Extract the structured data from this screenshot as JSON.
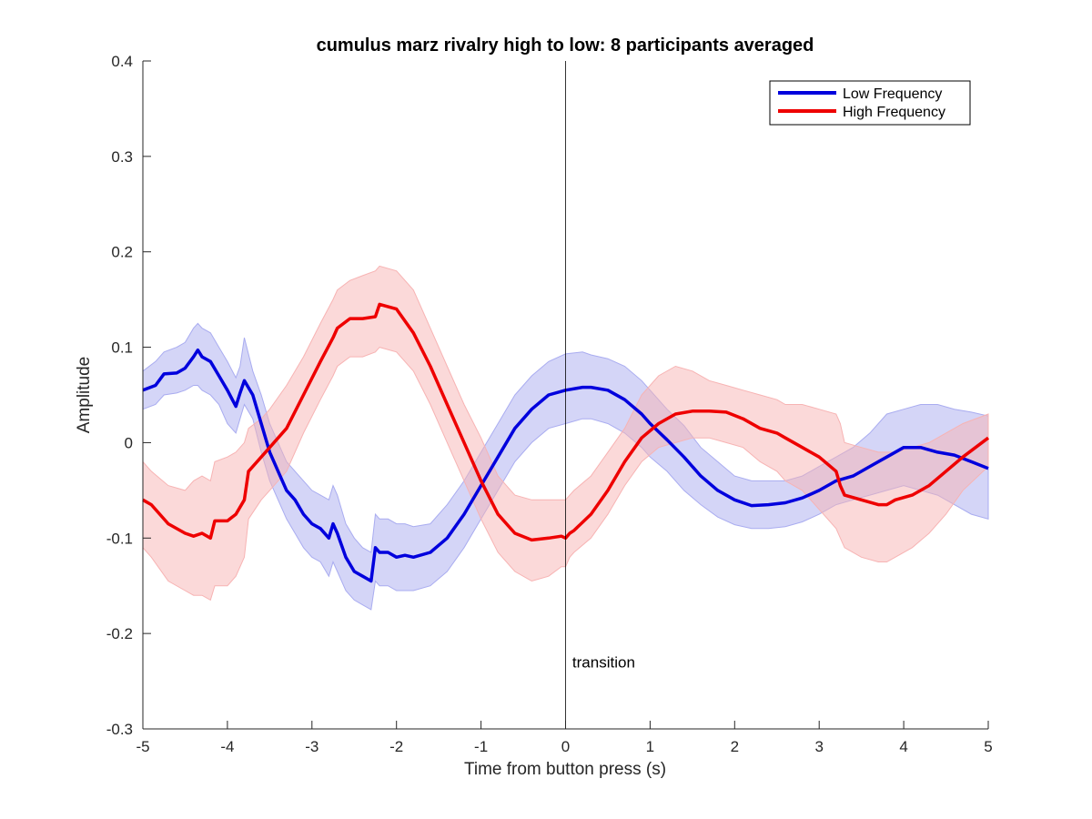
{
  "chart_data": {
    "type": "line",
    "title": "cumulus marz rivalry high to low: 8 participants averaged",
    "xlabel": "Time from button press (s)",
    "ylabel": "Amplitude",
    "xlim": [
      -5,
      5
    ],
    "ylim": [
      -0.3,
      0.4
    ],
    "xticks": [
      -5,
      -4,
      -3,
      -2,
      -1,
      0,
      1,
      2,
      3,
      4,
      5
    ],
    "xtick_labels": [
      "-5",
      "-4",
      "-3",
      "-2",
      "-1",
      "0",
      "1",
      "2",
      "3",
      "4",
      "5"
    ],
    "yticks": [
      -0.3,
      -0.2,
      -0.1,
      0,
      0.1,
      0.2,
      0.3,
      0.4
    ],
    "ytick_labels": [
      "-0.3",
      "-0.2",
      "-0.1",
      "0",
      "0.1",
      "0.2",
      "0.3",
      "0.4"
    ],
    "grid": false,
    "legend_position": "top-right",
    "vline": {
      "x": 0,
      "color": "#000000"
    },
    "annotation": {
      "text": "transition",
      "x": 0.08,
      "y": -0.23
    },
    "series": [
      {
        "name": "Low Frequency",
        "color": "#0000dd",
        "band_color": "#a9acf0",
        "x": [
          -5,
          -4.85,
          -4.75,
          -4.6,
          -4.5,
          -4.4,
          -4.35,
          -4.3,
          -4.2,
          -4.1,
          -4.0,
          -3.9,
          -3.85,
          -3.8,
          -3.7,
          -3.6,
          -3.5,
          -3.4,
          -3.3,
          -3.2,
          -3.1,
          -3.0,
          -2.9,
          -2.8,
          -2.75,
          -2.7,
          -2.6,
          -2.5,
          -2.4,
          -2.3,
          -2.25,
          -2.2,
          -2.1,
          -2.0,
          -1.9,
          -1.8,
          -1.6,
          -1.4,
          -1.2,
          -1.0,
          -0.8,
          -0.6,
          -0.4,
          -0.2,
          0.0,
          0.2,
          0.3,
          0.5,
          0.7,
          0.9,
          1.0,
          1.2,
          1.4,
          1.6,
          1.8,
          2.0,
          2.2,
          2.4,
          2.6,
          2.8,
          3.0,
          3.2,
          3.4,
          3.6,
          3.8,
          4.0,
          4.2,
          4.4,
          4.6,
          4.8,
          5.0
        ],
        "y": [
          0.055,
          0.06,
          0.072,
          0.073,
          0.078,
          0.09,
          0.097,
          0.09,
          0.085,
          0.07,
          0.055,
          0.038,
          0.052,
          0.065,
          0.05,
          0.02,
          -0.01,
          -0.03,
          -0.05,
          -0.06,
          -0.075,
          -0.085,
          -0.09,
          -0.1,
          -0.085,
          -0.095,
          -0.12,
          -0.135,
          -0.14,
          -0.145,
          -0.11,
          -0.115,
          -0.115,
          -0.12,
          -0.118,
          -0.12,
          -0.115,
          -0.1,
          -0.075,
          -0.045,
          -0.015,
          0.015,
          0.035,
          0.05,
          0.055,
          0.058,
          0.058,
          0.055,
          0.045,
          0.03,
          0.02,
          0.003,
          -0.015,
          -0.035,
          -0.05,
          -0.06,
          -0.066,
          -0.065,
          -0.063,
          -0.058,
          -0.05,
          -0.04,
          -0.035,
          -0.025,
          -0.015,
          -0.005,
          -0.005,
          -0.01,
          -0.013,
          -0.02,
          -0.027
        ],
        "lower": [
          0.035,
          0.04,
          0.05,
          0.052,
          0.055,
          0.06,
          0.06,
          0.055,
          0.05,
          0.04,
          0.02,
          0.01,
          0.025,
          0.04,
          0.025,
          -0.01,
          -0.04,
          -0.06,
          -0.08,
          -0.095,
          -0.11,
          -0.12,
          -0.125,
          -0.14,
          -0.125,
          -0.135,
          -0.155,
          -0.165,
          -0.17,
          -0.175,
          -0.145,
          -0.15,
          -0.15,
          -0.155,
          -0.155,
          -0.155,
          -0.15,
          -0.135,
          -0.11,
          -0.08,
          -0.05,
          -0.02,
          0.0,
          0.015,
          0.02,
          0.025,
          0.025,
          0.02,
          0.01,
          -0.005,
          -0.015,
          -0.03,
          -0.05,
          -0.065,
          -0.078,
          -0.086,
          -0.09,
          -0.09,
          -0.088,
          -0.083,
          -0.075,
          -0.065,
          -0.06,
          -0.055,
          -0.05,
          -0.045,
          -0.05,
          -0.055,
          -0.065,
          -0.075,
          -0.08
        ],
        "upper": [
          0.075,
          0.085,
          0.095,
          0.1,
          0.105,
          0.12,
          0.125,
          0.12,
          0.115,
          0.1,
          0.085,
          0.068,
          0.08,
          0.11,
          0.075,
          0.05,
          0.02,
          0.0,
          -0.02,
          -0.03,
          -0.04,
          -0.05,
          -0.055,
          -0.06,
          -0.045,
          -0.055,
          -0.085,
          -0.1,
          -0.11,
          -0.115,
          -0.075,
          -0.08,
          -0.08,
          -0.085,
          -0.085,
          -0.088,
          -0.085,
          -0.065,
          -0.04,
          -0.01,
          0.02,
          0.05,
          0.07,
          0.085,
          0.093,
          0.095,
          0.092,
          0.088,
          0.08,
          0.065,
          0.055,
          0.035,
          0.018,
          -0.005,
          -0.02,
          -0.035,
          -0.04,
          -0.04,
          -0.04,
          -0.035,
          -0.025,
          -0.015,
          -0.005,
          0.01,
          0.03,
          0.035,
          0.04,
          0.04,
          0.035,
          0.032,
          0.028
        ]
      },
      {
        "name": "High Frequency",
        "color": "#ee0000",
        "band_color": "#f7b3b3",
        "x": [
          -5,
          -4.9,
          -4.7,
          -4.5,
          -4.4,
          -4.3,
          -4.2,
          -4.15,
          -4.0,
          -3.9,
          -3.8,
          -3.75,
          -3.6,
          -3.5,
          -3.3,
          -3.1,
          -2.9,
          -2.75,
          -2.7,
          -2.55,
          -2.4,
          -2.25,
          -2.2,
          -2.0,
          -1.8,
          -1.6,
          -1.4,
          -1.2,
          -1.0,
          -0.8,
          -0.6,
          -0.4,
          -0.2,
          -0.05,
          0.0,
          0.05,
          0.1,
          0.3,
          0.5,
          0.7,
          0.9,
          1.1,
          1.3,
          1.5,
          1.7,
          1.9,
          2.1,
          2.3,
          2.5,
          2.6,
          2.8,
          3.0,
          3.2,
          3.25,
          3.3,
          3.5,
          3.7,
          3.8,
          3.9,
          4.1,
          4.3,
          4.5,
          4.7,
          5.0
        ],
        "y": [
          -0.06,
          -0.065,
          -0.085,
          -0.095,
          -0.098,
          -0.095,
          -0.1,
          -0.082,
          -0.082,
          -0.075,
          -0.06,
          -0.03,
          -0.015,
          -0.005,
          0.015,
          0.05,
          0.085,
          0.11,
          0.12,
          0.13,
          0.13,
          0.132,
          0.145,
          0.14,
          0.115,
          0.08,
          0.04,
          0.0,
          -0.04,
          -0.075,
          -0.095,
          -0.102,
          -0.1,
          -0.098,
          -0.1,
          -0.095,
          -0.092,
          -0.075,
          -0.05,
          -0.02,
          0.005,
          0.02,
          0.03,
          0.033,
          0.033,
          0.032,
          0.025,
          0.015,
          0.01,
          0.005,
          -0.005,
          -0.015,
          -0.03,
          -0.045,
          -0.055,
          -0.06,
          -0.065,
          -0.065,
          -0.06,
          -0.055,
          -0.045,
          -0.03,
          -0.015,
          0.005
        ],
        "lower": [
          -0.11,
          -0.12,
          -0.145,
          -0.155,
          -0.16,
          -0.16,
          -0.165,
          -0.15,
          -0.15,
          -0.14,
          -0.12,
          -0.08,
          -0.06,
          -0.05,
          -0.03,
          0.01,
          0.045,
          0.07,
          0.08,
          0.09,
          0.09,
          0.095,
          0.1,
          0.095,
          0.075,
          0.04,
          0.0,
          -0.04,
          -0.08,
          -0.115,
          -0.135,
          -0.145,
          -0.14,
          -0.13,
          -0.13,
          -0.12,
          -0.115,
          -0.1,
          -0.075,
          -0.045,
          -0.02,
          -0.005,
          0.0,
          0.005,
          0.005,
          0.0,
          -0.005,
          -0.02,
          -0.03,
          -0.04,
          -0.05,
          -0.07,
          -0.09,
          -0.1,
          -0.11,
          -0.12,
          -0.125,
          -0.125,
          -0.12,
          -0.11,
          -0.095,
          -0.075,
          -0.05,
          -0.025
        ],
        "upper": [
          -0.02,
          -0.03,
          -0.045,
          -0.05,
          -0.04,
          -0.035,
          -0.04,
          -0.02,
          -0.015,
          -0.01,
          0.0,
          0.015,
          0.025,
          0.035,
          0.06,
          0.09,
          0.125,
          0.15,
          0.16,
          0.17,
          0.175,
          0.18,
          0.185,
          0.18,
          0.16,
          0.12,
          0.08,
          0.04,
          0.005,
          -0.035,
          -0.055,
          -0.06,
          -0.06,
          -0.06,
          -0.06,
          -0.055,
          -0.05,
          -0.035,
          -0.01,
          0.015,
          0.05,
          0.07,
          0.08,
          0.075,
          0.065,
          0.06,
          0.055,
          0.05,
          0.045,
          0.04,
          0.04,
          0.035,
          0.03,
          0.02,
          0.0,
          -0.005,
          -0.01,
          -0.01,
          -0.01,
          -0.005,
          0.0,
          0.01,
          0.02,
          0.03
        ]
      }
    ]
  }
}
